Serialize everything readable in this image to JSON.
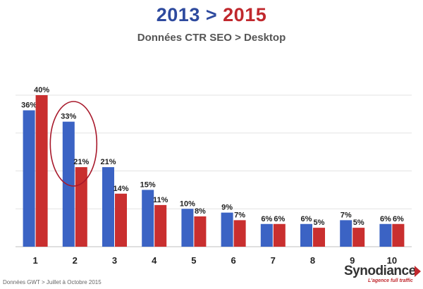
{
  "header": {
    "year_from": "2013",
    "separator": ">",
    "year_to": "2015",
    "subtitle": "Données CTR SEO > Desktop"
  },
  "footer": {
    "source": "Données GWT > Juillet à Octobre 2015",
    "logo_name": "Synodiance",
    "logo_tagline": "L'agence full traffic"
  },
  "colors": {
    "series_2013": "#3b63c4",
    "series_2015": "#c92f2f",
    "title_blue": "#2e4a9e",
    "title_red": "#c0282d",
    "highlight_circle": "#a8192b"
  },
  "chart_data": {
    "type": "bar",
    "categories": [
      "1",
      "2",
      "3",
      "4",
      "5",
      "6",
      "7",
      "8",
      "9",
      "10"
    ],
    "series": [
      {
        "name": "2013",
        "values": [
          36,
          33,
          21,
          15,
          10,
          9,
          6,
          6,
          7,
          6
        ],
        "labels": [
          "36%",
          "33%",
          "21%",
          "15%",
          "10%",
          "9%",
          "6%",
          "6%",
          "7%",
          "6%"
        ]
      },
      {
        "name": "2015",
        "values": [
          40,
          21,
          14,
          11,
          8,
          7,
          6,
          5,
          5,
          6
        ],
        "labels": [
          "40%",
          "21%",
          "14%",
          "11%",
          "8%",
          "7%",
          "6%",
          "5%",
          "5%",
          "6%"
        ]
      }
    ],
    "ylim": [
      0,
      40
    ],
    "grid": true,
    "highlight_category": "2"
  }
}
